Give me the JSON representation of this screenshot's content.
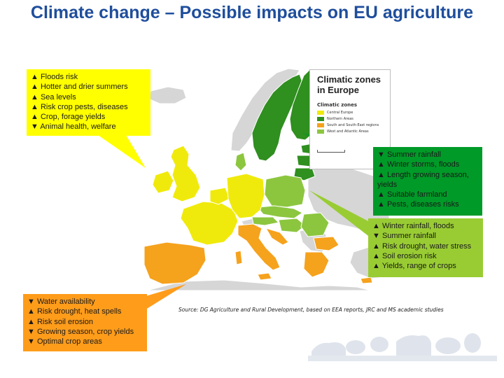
{
  "title": "Climate change – Possible impacts on EU agriculture",
  "map": {
    "legend_title_line1": "Climatic zones",
    "legend_title_line2": "in Europe",
    "legend_subtitle": "Climatic zones",
    "zones": [
      {
        "label": "Central Europe",
        "color": "#f0ea0c"
      },
      {
        "label": "Northern Areas",
        "color": "#2f8f1f"
      },
      {
        "label": "South and South-East regions",
        "color": "#f5a21d"
      },
      {
        "label": "West and Atlantic Areas",
        "color": "#8cc63f"
      }
    ],
    "colors": {
      "sea": "#ffffff",
      "non_eu": "#d6d6d6",
      "border": "#ffffff"
    }
  },
  "callouts": {
    "central": {
      "color": "#ffff00",
      "lines": [
        "▲ Floods risk",
        "▲ Hotter and drier summers",
        "▲ Sea levels",
        "▲ Risk crop pests, diseases",
        "▲ Crop, forage yields",
        "▼ Animal health, welfare"
      ]
    },
    "northern": {
      "color": "#009a28",
      "lines": [
        "▼ Summer rainfall",
        "▲ Winter storms, floods",
        "▲ Length growing season, yields",
        "▲ Suitable farmland",
        "▲ Pests, diseases risks"
      ]
    },
    "atlantic": {
      "color": "#99cc33",
      "lines": [
        "▲ Winter rainfall, floods",
        "▼ Summer rainfall",
        "▲ Risk drought, water stress",
        "▲ Soil erosion risk",
        "▲ Yields, range of crops"
      ]
    },
    "southern": {
      "color": "#ff9c1a",
      "lines": [
        "▼ Water availability",
        "▲ Risk drought, heat spells",
        "▲ Risk soil erosion",
        "▼ Growing season, crop yields",
        "▼ Optimal crop areas"
      ]
    }
  },
  "source": "Source: DG Agriculture and Rural Development, based on EEA reports, JRC and MS academic studies"
}
